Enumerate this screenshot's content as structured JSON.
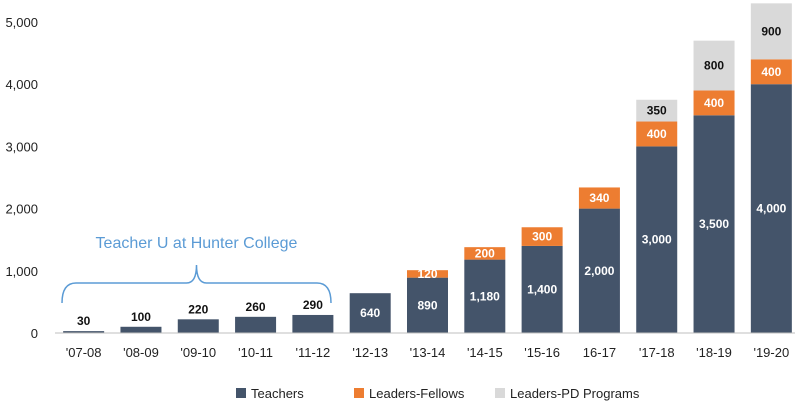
{
  "chart_data": {
    "type": "bar",
    "stacked": true,
    "categories": [
      "'07-08",
      "'08-09",
      "'09-10",
      "'10-11",
      "'11-12",
      "'12-13",
      "'13-14",
      "'14-15",
      "'15-16",
      "16-17",
      "'17-18",
      "'18-19",
      "'19-20"
    ],
    "series": [
      {
        "name": "Teachers",
        "color": "#44546a",
        "values": [
          30,
          100,
          220,
          260,
          290,
          640,
          890,
          1180,
          1400,
          2000,
          3000,
          3500,
          4000
        ],
        "labels": [
          "30",
          "100",
          "220",
          "260",
          "290",
          "640",
          "890",
          "1,180",
          "1,400",
          "2,000",
          "3,000",
          "3,500",
          "4,000"
        ]
      },
      {
        "name": "Leaders-Fellows",
        "color": "#ed7d31",
        "values": [
          0,
          0,
          0,
          0,
          0,
          0,
          120,
          200,
          300,
          340,
          400,
          400,
          400
        ],
        "labels": [
          "",
          "",
          "",
          "",
          "",
          "",
          "120",
          "200",
          "300",
          "340",
          "400",
          "400",
          "400"
        ]
      },
      {
        "name": "Leaders-PD Programs",
        "color": "#d9d9d9",
        "values": [
          0,
          0,
          0,
          0,
          0,
          0,
          0,
          0,
          0,
          0,
          350,
          800,
          900
        ],
        "labels": [
          "",
          "",
          "",
          "",
          "",
          "",
          "",
          "",
          "",
          "",
          "350",
          "800",
          "900"
        ]
      }
    ],
    "ylim": [
      0,
      5000
    ],
    "yticks": [
      0,
      1000,
      2000,
      3000,
      4000,
      5000
    ],
    "ytick_labels": [
      "0",
      "1,000",
      "2,000",
      "3,000",
      "4,000",
      "5,000"
    ],
    "title": "",
    "xlabel": "",
    "ylabel": "",
    "grid": false,
    "legend_position": "bottom-center",
    "annotations": [
      {
        "text": "Teacher U at Hunter College",
        "color": "#5b9bd5",
        "spans_categories": [
          "'07-08",
          "'11-12"
        ]
      }
    ]
  }
}
